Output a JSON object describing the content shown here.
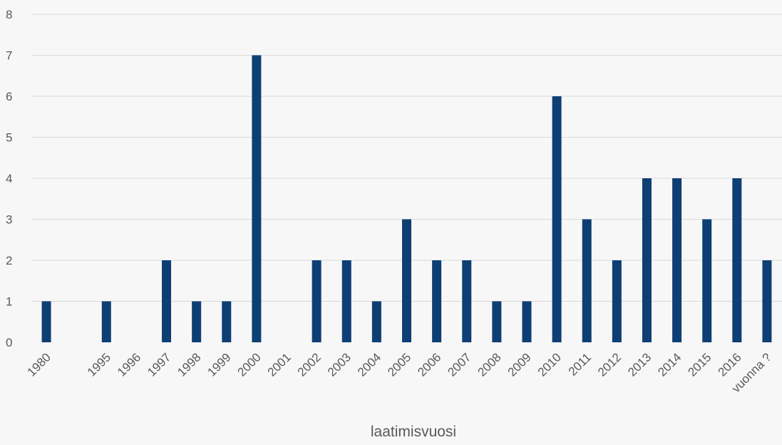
{
  "chart_data": {
    "type": "bar",
    "title": "",
    "xlabel": "laatimisvuosi",
    "ylabel": "",
    "ylim": [
      0,
      8
    ],
    "yticks": [
      0,
      1,
      2,
      3,
      4,
      5,
      6,
      7,
      8
    ],
    "grid": true,
    "legend": "none",
    "bar_color": "#0e3f74",
    "grid_color": "#d9d9d9",
    "categories": [
      "1980",
      "",
      "1995",
      "1996",
      "1997",
      "1998",
      "1999",
      "2000",
      "2001",
      "2002",
      "2003",
      "2004",
      "2005",
      "2006",
      "2007",
      "2008",
      "2009",
      "2010",
      "2011",
      "2012",
      "2013",
      "2014",
      "2015",
      "2016",
      "vuonna ?"
    ],
    "values": [
      1,
      0,
      1,
      0,
      2,
      1,
      1,
      7,
      0,
      2,
      2,
      1,
      3,
      2,
      2,
      1,
      1,
      6,
      3,
      2,
      4,
      4,
      3,
      4,
      2
    ]
  }
}
